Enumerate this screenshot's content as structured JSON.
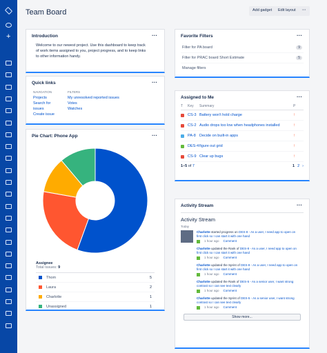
{
  "header": {
    "title": "Team Board",
    "buttons": [
      "Add gadget",
      "Edit layout"
    ]
  },
  "introduction": {
    "title": "Introduction",
    "text": "Welcome to our newest project. Use this dashboard to keep track of work items assigned to you, project progress, and to keep links to other information handy."
  },
  "quick_links": {
    "title": "Quick links",
    "navigation": {
      "heading": "NAVIGATION",
      "links": [
        "Projects",
        "Search for issues",
        "Create issue"
      ]
    },
    "filters": {
      "heading": "FILTERS",
      "links": [
        "My unresolved reported issues",
        "Votes",
        "Watches"
      ]
    }
  },
  "chart_data": {
    "type": "pie",
    "title": "Pie Chart: Phone App",
    "categories": [
      "Thom",
      "Laura",
      "Charlotte",
      "Unassigned"
    ],
    "values": [
      5,
      2,
      1,
      1
    ],
    "colors": [
      "#0052cc",
      "#ff5630",
      "#ffab00",
      "#36b37e"
    ],
    "legend_title": "Assignee",
    "total_label": "Total Issues:",
    "total": 9
  },
  "favorite_filters": {
    "title": "Favorite Filters",
    "rows": [
      {
        "name": "Filter for PA board",
        "count": 9
      },
      {
        "name": "Filter for PRAC board Short Estimate",
        "count": 5
      }
    ],
    "manage": "Manage filters"
  },
  "assigned": {
    "title": "Assigned to Me",
    "columns": [
      "T",
      "Key",
      "Summary",
      "P"
    ],
    "rows": [
      [
        "CS-3",
        "Battery won't hold charge"
      ],
      [
        "CS-2",
        "Audio drops too low when headphones installed"
      ],
      [
        "PA-8",
        "Decide on built-in apps"
      ],
      [
        "DES-4",
        "figure out grid"
      ],
      [
        "CS-9",
        "Clear up bugs"
      ]
    ],
    "range": "1–5",
    "of": "of",
    "total": 7,
    "pages": [
      1,
      2
    ]
  },
  "activity": {
    "title": "Activity Stream",
    "heading": "Activity Stream",
    "day": "Today",
    "time": "1 hour ago",
    "comment": "Comment",
    "more": "Show more...",
    "entries": [
      {
        "user": "Charlotte",
        "action": "started progress on",
        "issue": "DES-8",
        "summary": "- As a user, I need app to open on first click so I can start it with one hand"
      },
      {
        "user": "Charlotte",
        "action": "updated the Rank of",
        "issue": "DES-8",
        "summary": "- As a user, I need app to open on first click so I can start it with one hand"
      },
      {
        "user": "Charlotte",
        "action": "updated the Sprint of",
        "issue": "DES-8",
        "summary": "- As a user, I need app to open on first click so I can start it with one hand"
      },
      {
        "user": "Charlotte",
        "action": "updated the Rank of",
        "issue": "DES-5",
        "summary": "- As a senior user, I want strong contrast so I can see text clearly"
      },
      {
        "user": "Charlotte",
        "action": "updated the Sprint of",
        "issue": "DES-5",
        "summary": "- As a senior user, I want strong contrast so I can see text clearly"
      }
    ]
  }
}
